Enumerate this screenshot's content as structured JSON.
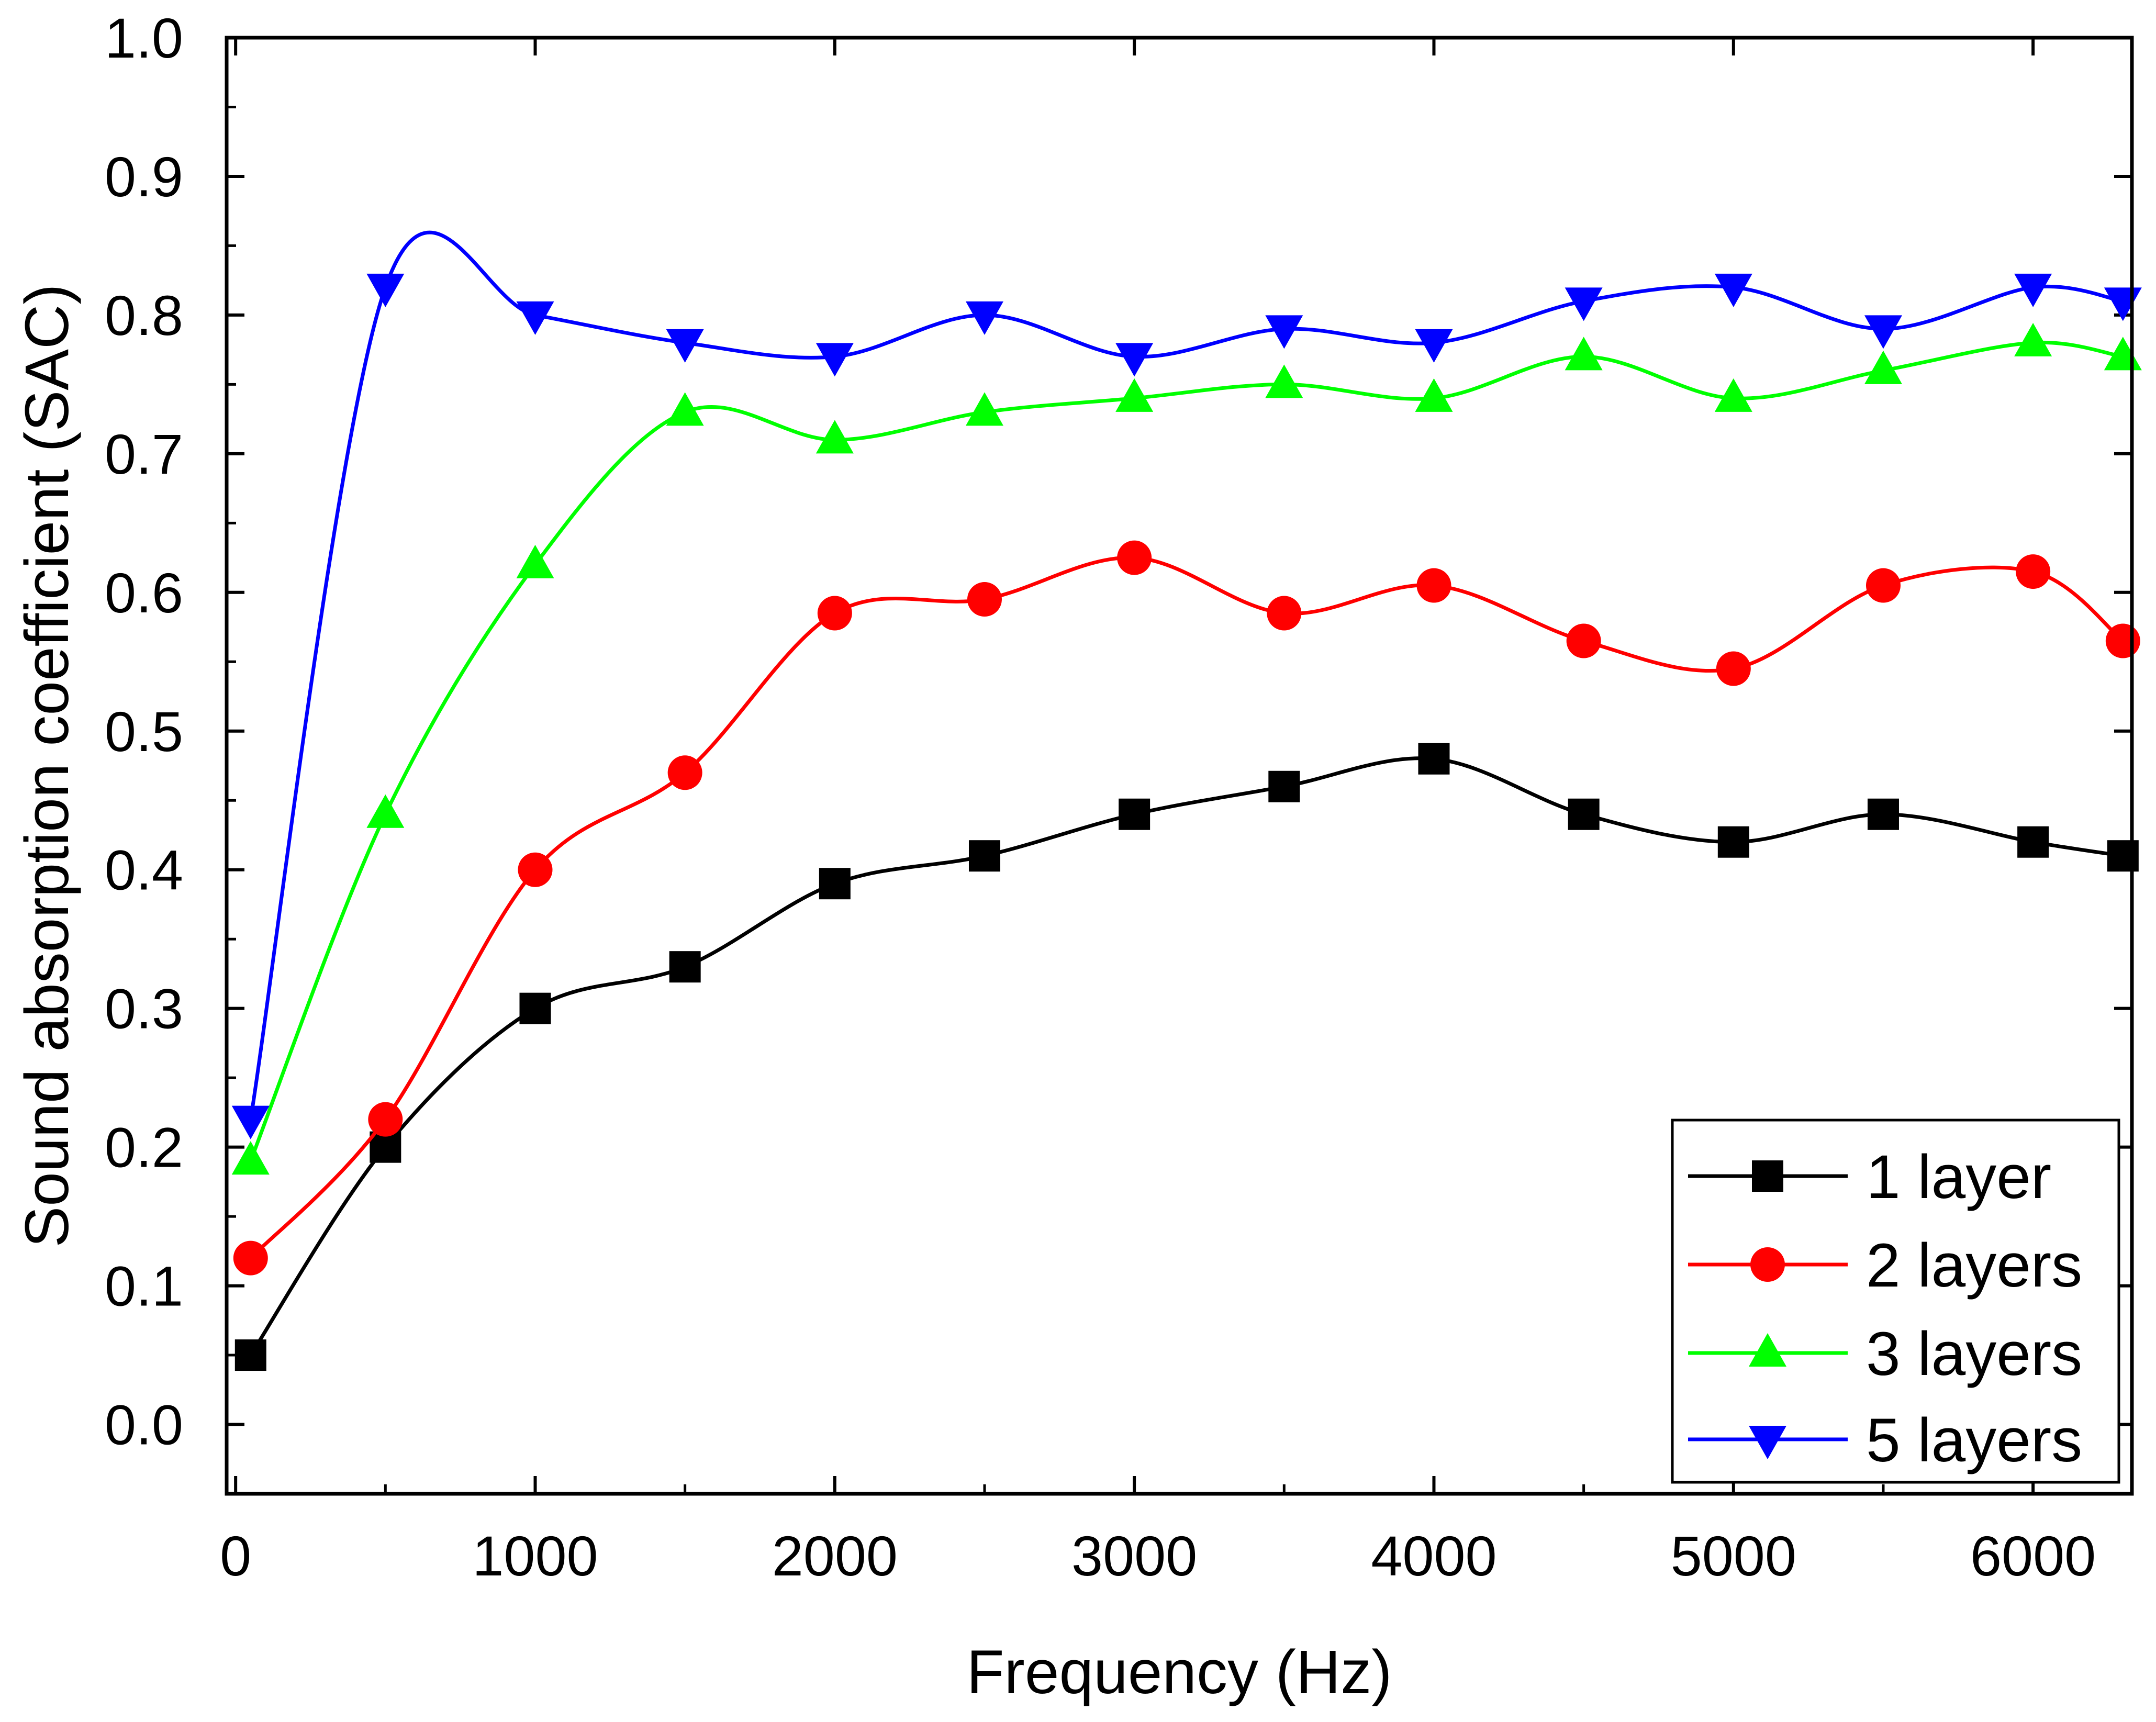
{
  "chart_data": {
    "type": "line",
    "xlabel": "Frequency (Hz)",
    "ylabel": "Sound absorption coefficient (SAC)",
    "xlim": [
      -30,
      6330
    ],
    "ylim": [
      -0.05,
      1.0
    ],
    "xticks": [
      0,
      1000,
      2000,
      3000,
      4000,
      5000,
      6000
    ],
    "xtick_labels": [
      "0",
      "1000",
      "2000",
      "3000",
      "4000",
      "5000",
      "6000"
    ],
    "yticks": [
      0.0,
      0.1,
      0.2,
      0.3,
      0.4,
      0.5,
      0.6,
      0.7,
      0.8,
      0.9,
      1.0
    ],
    "ytick_labels": [
      "0.0",
      "0.1",
      "0.2",
      "0.3",
      "0.4",
      "0.5",
      "0.6",
      "0.7",
      "0.8",
      "0.9",
      "1.0"
    ],
    "grid": false,
    "legend_position": "bottom-right",
    "x": [
      50,
      500,
      1000,
      1500,
      2000,
      2500,
      3000,
      3500,
      4000,
      4500,
      5000,
      5500,
      6000,
      6300
    ],
    "series": [
      {
        "name": "1 layer",
        "color": "#000000",
        "marker": "square",
        "values": [
          0.05,
          0.2,
          0.3,
          0.33,
          0.39,
          0.41,
          0.44,
          0.46,
          0.48,
          0.44,
          0.42,
          0.44,
          0.42,
          0.41
        ]
      },
      {
        "name": "2 layers",
        "color": "#ff0000",
        "marker": "circle",
        "values": [
          0.12,
          0.22,
          0.4,
          0.47,
          0.585,
          0.595,
          0.625,
          0.585,
          0.605,
          0.565,
          0.545,
          0.605,
          0.615,
          0.565
        ]
      },
      {
        "name": "3 layers",
        "color": "#00ff00",
        "marker": "triangle-up",
        "values": [
          0.19,
          0.44,
          0.62,
          0.73,
          0.71,
          0.73,
          0.74,
          0.75,
          0.74,
          0.77,
          0.74,
          0.76,
          0.78,
          0.77
        ]
      },
      {
        "name": "5 layers",
        "color": "#0000ff",
        "marker": "triangle-down",
        "values": [
          0.22,
          0.82,
          0.8,
          0.78,
          0.77,
          0.8,
          0.77,
          0.79,
          0.78,
          0.81,
          0.82,
          0.79,
          0.82,
          0.81
        ]
      }
    ]
  }
}
